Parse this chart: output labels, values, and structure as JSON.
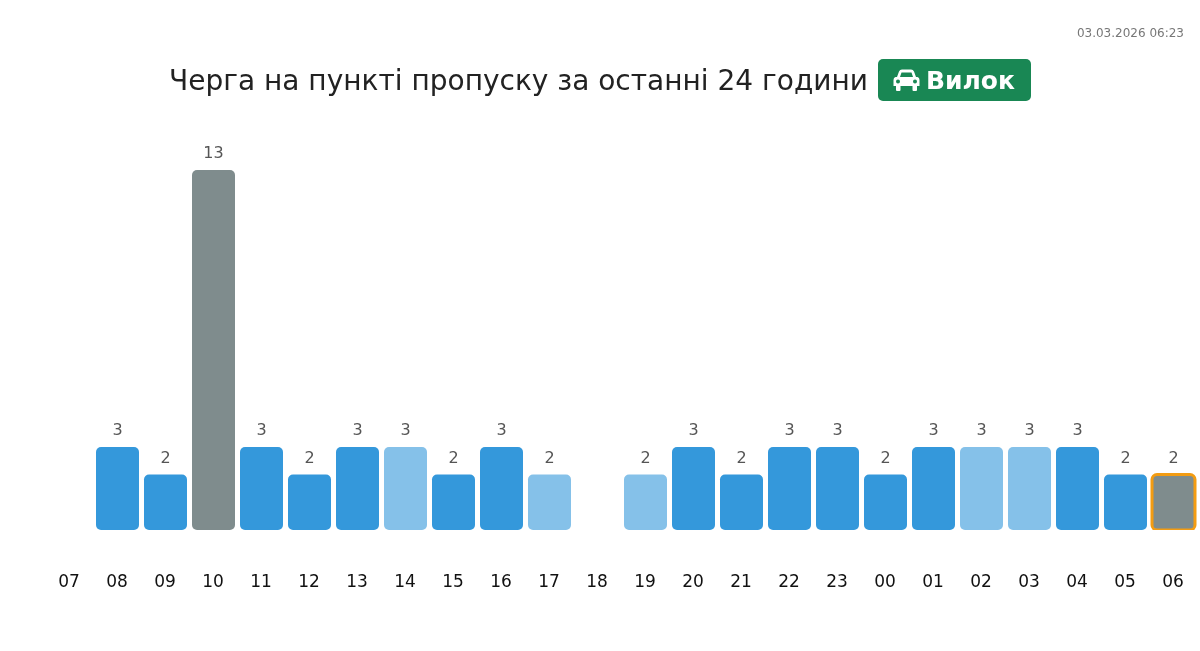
{
  "chart_data": {
    "type": "bar",
    "title": "Черга на пункті пропуску за останні 24 години",
    "subtitle": "Вилок",
    "annotations": [
      "03.03.2026 06:23"
    ],
    "categories": [
      "07",
      "08",
      "09",
      "10",
      "11",
      "12",
      "13",
      "14",
      "15",
      "16",
      "17",
      "18",
      "19",
      "20",
      "21",
      "22",
      "23",
      "00",
      "01",
      "02",
      "03",
      "04",
      "05",
      "06"
    ],
    "values": [
      null,
      3,
      2,
      13,
      3,
      2,
      3,
      3,
      2,
      3,
      2,
      null,
      2,
      3,
      2,
      3,
      3,
      2,
      3,
      3,
      3,
      3,
      2,
      2
    ],
    "colors": [
      null,
      "#3498db",
      "#3498db",
      "#7f8c8d",
      "#3498db",
      "#3498db",
      "#3498db",
      "#85c1e9",
      "#3498db",
      "#3498db",
      "#85c1e9",
      null,
      "#85c1e9",
      "#3498db",
      "#3498db",
      "#3498db",
      "#3498db",
      "#3498db",
      "#3498db",
      "#85c1e9",
      "#85c1e9",
      "#3498db",
      "#3498db",
      "#7f8c8d"
    ],
    "data_labels": true,
    "tick_labels": "x"
  }
}
